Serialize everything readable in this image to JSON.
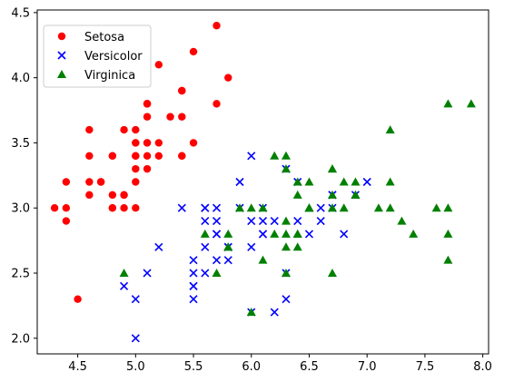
{
  "chart_data": {
    "type": "scatter",
    "title": "",
    "xlabel": "",
    "ylabel": "",
    "xlim": [
      4.15,
      8.05
    ],
    "ylim": [
      1.88,
      4.52
    ],
    "x_ticks": [
      "4.5",
      "5.0",
      "5.5",
      "6.0",
      "6.5",
      "7.0",
      "7.5",
      "8.0"
    ],
    "y_ticks": [
      "2.0",
      "2.5",
      "3.0",
      "3.5",
      "4.0",
      "4.5"
    ],
    "grid": false,
    "legend_position": "upper-left",
    "series": [
      {
        "name": "Setosa",
        "marker": "circle",
        "color": "#ff0000",
        "points": [
          [
            5.1,
            3.5
          ],
          [
            4.9,
            3.0
          ],
          [
            4.7,
            3.2
          ],
          [
            4.6,
            3.1
          ],
          [
            5.0,
            3.6
          ],
          [
            5.4,
            3.9
          ],
          [
            4.6,
            3.4
          ],
          [
            5.0,
            3.4
          ],
          [
            4.4,
            2.9
          ],
          [
            4.9,
            3.1
          ],
          [
            5.4,
            3.7
          ],
          [
            4.8,
            3.4
          ],
          [
            4.8,
            3.0
          ],
          [
            4.3,
            3.0
          ],
          [
            5.8,
            4.0
          ],
          [
            5.7,
            4.4
          ],
          [
            5.4,
            3.9
          ],
          [
            5.1,
            3.5
          ],
          [
            5.7,
            3.8
          ],
          [
            5.1,
            3.8
          ],
          [
            5.4,
            3.4
          ],
          [
            5.1,
            3.7
          ],
          [
            4.6,
            3.6
          ],
          [
            5.1,
            3.3
          ],
          [
            4.8,
            3.4
          ],
          [
            5.0,
            3.0
          ],
          [
            5.0,
            3.4
          ],
          [
            5.2,
            3.5
          ],
          [
            5.2,
            3.4
          ],
          [
            4.7,
            3.2
          ],
          [
            4.8,
            3.1
          ],
          [
            5.4,
            3.4
          ],
          [
            5.2,
            4.1
          ],
          [
            5.5,
            4.2
          ],
          [
            4.9,
            3.1
          ],
          [
            5.0,
            3.2
          ],
          [
            5.5,
            3.5
          ],
          [
            4.9,
            3.6
          ],
          [
            4.4,
            3.0
          ],
          [
            5.1,
            3.4
          ],
          [
            5.0,
            3.5
          ],
          [
            4.5,
            2.3
          ],
          [
            4.4,
            3.2
          ],
          [
            5.0,
            3.5
          ],
          [
            5.1,
            3.8
          ],
          [
            4.8,
            3.0
          ],
          [
            5.1,
            3.8
          ],
          [
            4.6,
            3.2
          ],
          [
            5.3,
            3.7
          ],
          [
            5.0,
            3.3
          ]
        ]
      },
      {
        "name": "Versicolor",
        "marker": "x",
        "color": "#0000ff",
        "points": [
          [
            7.0,
            3.2
          ],
          [
            6.4,
            3.2
          ],
          [
            6.9,
            3.1
          ],
          [
            5.5,
            2.3
          ],
          [
            6.5,
            2.8
          ],
          [
            5.7,
            2.8
          ],
          [
            6.3,
            3.3
          ],
          [
            4.9,
            2.4
          ],
          [
            6.6,
            2.9
          ],
          [
            5.2,
            2.7
          ],
          [
            5.0,
            2.0
          ],
          [
            5.9,
            3.0
          ],
          [
            6.0,
            2.2
          ],
          [
            6.1,
            2.9
          ],
          [
            5.6,
            2.9
          ],
          [
            6.7,
            3.1
          ],
          [
            5.6,
            3.0
          ],
          [
            5.8,
            2.7
          ],
          [
            6.2,
            2.2
          ],
          [
            5.6,
            2.5
          ],
          [
            5.9,
            3.2
          ],
          [
            6.1,
            2.8
          ],
          [
            6.3,
            2.5
          ],
          [
            6.1,
            2.8
          ],
          [
            6.4,
            2.9
          ],
          [
            6.6,
            3.0
          ],
          [
            6.8,
            2.8
          ],
          [
            6.7,
            3.0
          ],
          [
            6.0,
            2.9
          ],
          [
            5.7,
            2.6
          ],
          [
            5.5,
            2.4
          ],
          [
            5.5,
            2.4
          ],
          [
            5.8,
            2.7
          ],
          [
            6.0,
            2.7
          ],
          [
            5.4,
            3.0
          ],
          [
            6.0,
            3.4
          ],
          [
            6.7,
            3.1
          ],
          [
            6.3,
            2.3
          ],
          [
            5.6,
            3.0
          ],
          [
            5.5,
            2.5
          ],
          [
            5.5,
            2.6
          ],
          [
            6.1,
            3.0
          ],
          [
            5.8,
            2.6
          ],
          [
            5.0,
            2.3
          ],
          [
            5.6,
            2.7
          ],
          [
            5.7,
            3.0
          ],
          [
            5.7,
            2.9
          ],
          [
            6.2,
            2.9
          ],
          [
            5.1,
            2.5
          ],
          [
            5.7,
            2.8
          ]
        ]
      },
      {
        "name": "Virginica",
        "marker": "triangle",
        "color": "#008000",
        "points": [
          [
            6.3,
            3.3
          ],
          [
            5.8,
            2.7
          ],
          [
            7.1,
            3.0
          ],
          [
            6.3,
            2.9
          ],
          [
            6.5,
            3.0
          ],
          [
            7.6,
            3.0
          ],
          [
            4.9,
            2.5
          ],
          [
            7.3,
            2.9
          ],
          [
            6.7,
            2.5
          ],
          [
            7.2,
            3.6
          ],
          [
            6.5,
            3.2
          ],
          [
            6.4,
            2.7
          ],
          [
            6.8,
            3.0
          ],
          [
            5.7,
            2.5
          ],
          [
            5.8,
            2.8
          ],
          [
            6.4,
            3.2
          ],
          [
            6.5,
            3.0
          ],
          [
            7.7,
            3.8
          ],
          [
            7.7,
            2.6
          ],
          [
            6.0,
            2.2
          ],
          [
            6.9,
            3.2
          ],
          [
            5.6,
            2.8
          ],
          [
            7.7,
            2.8
          ],
          [
            6.3,
            2.7
          ],
          [
            6.7,
            3.3
          ],
          [
            7.2,
            3.2
          ],
          [
            6.2,
            2.8
          ],
          [
            6.1,
            3.0
          ],
          [
            6.4,
            2.8
          ],
          [
            7.2,
            3.0
          ],
          [
            7.4,
            2.8
          ],
          [
            7.9,
            3.8
          ],
          [
            6.4,
            2.8
          ],
          [
            6.3,
            2.8
          ],
          [
            6.1,
            2.6
          ],
          [
            7.7,
            3.0
          ],
          [
            6.3,
            3.4
          ],
          [
            6.4,
            3.1
          ],
          [
            6.0,
            3.0
          ],
          [
            6.9,
            3.1
          ],
          [
            6.7,
            3.1
          ],
          [
            6.9,
            3.1
          ],
          [
            5.8,
            2.7
          ],
          [
            6.8,
            3.2
          ],
          [
            6.7,
            3.3
          ],
          [
            6.7,
            3.0
          ],
          [
            6.3,
            2.5
          ],
          [
            6.5,
            3.0
          ],
          [
            6.2,
            3.4
          ],
          [
            5.9,
            3.0
          ]
        ]
      }
    ]
  }
}
